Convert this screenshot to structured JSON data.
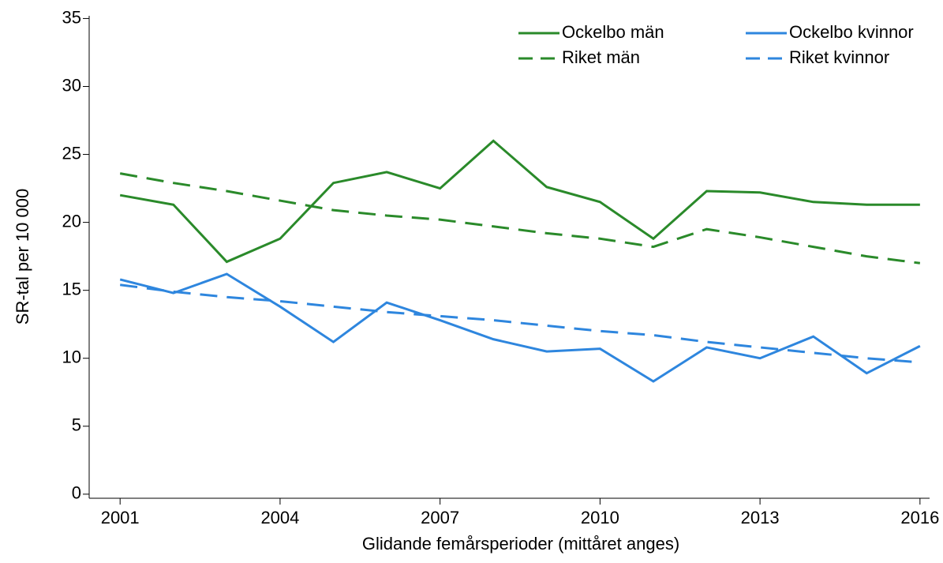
{
  "chart_data": {
    "type": "line",
    "x_label": "Glidande femårsperioder (mittåret anges)",
    "y_label": "SR-tal per 10 000",
    "x": [
      2001,
      2002,
      2003,
      2004,
      2005,
      2006,
      2007,
      2008,
      2009,
      2010,
      2011,
      2012,
      2013,
      2014,
      2015,
      2016
    ],
    "series": [
      {
        "name": "Ockelbo män",
        "color": "#2a8a2a",
        "dashed": false,
        "values": [
          22.0,
          21.3,
          17.1,
          18.8,
          22.9,
          23.7,
          22.5,
          26.0,
          22.6,
          21.5,
          18.8,
          22.3,
          22.2,
          21.5,
          21.3,
          21.3
        ]
      },
      {
        "name": "Ockelbo kvinnor",
        "color": "#2e86de",
        "dashed": false,
        "values": [
          15.8,
          14.8,
          16.2,
          13.8,
          11.2,
          14.1,
          12.8,
          11.4,
          10.5,
          10.7,
          8.3,
          10.8,
          10.0,
          11.6,
          8.9,
          10.9
        ]
      },
      {
        "name": "Riket män",
        "color": "#2a8a2a",
        "dashed": true,
        "values": [
          23.6,
          22.9,
          22.3,
          21.6,
          20.9,
          20.5,
          20.2,
          19.7,
          19.2,
          18.8,
          18.2,
          19.5,
          18.9,
          18.2,
          17.5,
          17.0
        ]
      },
      {
        "name": "Riket kvinnor",
        "color": "#2e86de",
        "dashed": true,
        "values": [
          15.4,
          14.9,
          14.5,
          14.2,
          13.8,
          13.4,
          13.1,
          12.8,
          12.4,
          12.0,
          11.7,
          11.2,
          10.8,
          10.4,
          10.0,
          9.7
        ]
      }
    ],
    "xlim": [
      2000.42,
      2016.18
    ],
    "xticks": [
      2001,
      2004,
      2007,
      2010,
      2013,
      2016
    ],
    "ylim": [
      -0.3,
      35.2
    ],
    "yticks": [
      0,
      5,
      10,
      15,
      20,
      25,
      30,
      35
    ],
    "legend": "top-right",
    "grid": false
  }
}
